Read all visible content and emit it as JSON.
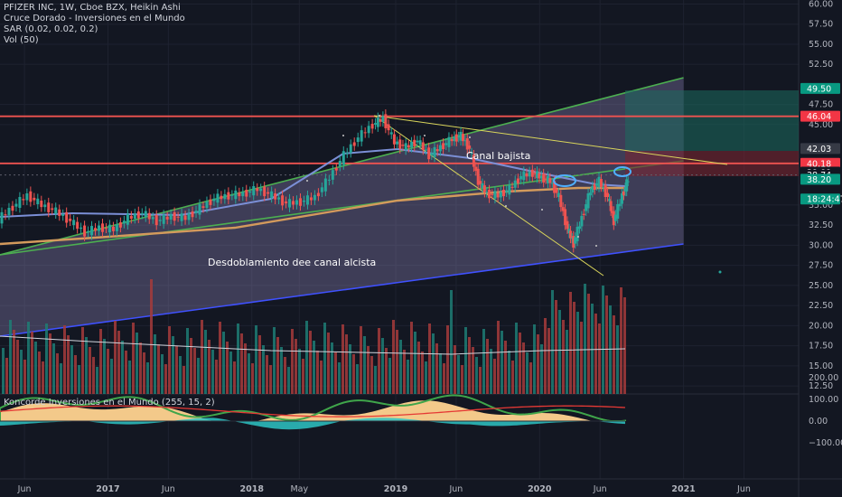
{
  "legend": {
    "line1": "PFIZER INC, 1W, Cboe BZX, Heikin Ashi",
    "line2": "Cruce Dorado - Inversiones en el Mundo",
    "line3": "SAR (0.02, 0.02, 0.2)",
    "line4": "Vol (50)"
  },
  "indicator": {
    "title": "Koncorde Inversiones en el Mundo (255, 15, 2)",
    "ticks": [
      "200.00",
      "100.00",
      "0.00",
      "−100.00"
    ]
  },
  "annotations": {
    "channel_down": "Canal bajista",
    "channel_up": "Desdoblamiento dee  canal alcista"
  },
  "colors": {
    "background": "#131722",
    "grid": "#1e2230",
    "channel_green": "#4caf50",
    "channel_blue": "#3f51ff",
    "resistance_red": "#ef5350",
    "trend_yellow": "#d9d55b",
    "candle_up": "#26a69a",
    "candle_down": "#ef5350"
  },
  "chart_data": {
    "type": "candlestick",
    "symbol": "PFIZER INC",
    "timeframe": "1W",
    "exchange": "Cboe BZX",
    "y_ticks": [
      "60.00",
      "57.50",
      "55.00",
      "52.50",
      "47.50",
      "45.00",
      "35.00",
      "32.50",
      "30.00",
      "27.50",
      "25.00",
      "22.50",
      "20.00",
      "17.50",
      "15.00",
      "12.50"
    ],
    "ylim": [
      11.5,
      60.5
    ],
    "x_ticks": [
      "Jun",
      "2017",
      "Jun",
      "2018",
      "May",
      "2019",
      "Jun",
      "2020",
      "Jun",
      "2021",
      "Jun"
    ],
    "x_tick_values": [
      2016.42,
      2017.0,
      2017.42,
      2018.0,
      2018.33,
      2019.0,
      2019.42,
      2020.0,
      2020.42,
      2021.0,
      2021.42
    ],
    "xlim": [
      2016.25,
      2021.8
    ],
    "price_labels": [
      {
        "value": 49.5,
        "text": "49.50",
        "color": "#089981"
      },
      {
        "value": 46.04,
        "text": "46.04",
        "color": "#f23645"
      },
      {
        "value": 42.03,
        "text": "42.03",
        "color": "#363a45"
      },
      {
        "value": 40.18,
        "text": "40.18",
        "color": "#f23645"
      },
      {
        "value": 39.09,
        "text": "39.09",
        "color": "#131722"
      },
      {
        "value": 38.74,
        "text": "38.74",
        "color": "#131722"
      },
      {
        "value": 38.2,
        "text": "38.20",
        "color": "#089981"
      },
      {
        "value": 35.75,
        "text": "18:24:47",
        "color": "#089981"
      }
    ],
    "closes": [
      {
        "x": 2016.25,
        "y": 33.2
      },
      {
        "x": 2016.35,
        "y": 34.8
      },
      {
        "x": 2016.45,
        "y": 36.2
      },
      {
        "x": 2016.55,
        "y": 35.0
      },
      {
        "x": 2016.65,
        "y": 34.2
      },
      {
        "x": 2016.75,
        "y": 33.0
      },
      {
        "x": 2016.85,
        "y": 31.6
      },
      {
        "x": 2016.95,
        "y": 32.2
      },
      {
        "x": 2017.05,
        "y": 32.0
      },
      {
        "x": 2017.15,
        "y": 33.4
      },
      {
        "x": 2017.25,
        "y": 34.0
      },
      {
        "x": 2017.35,
        "y": 33.0
      },
      {
        "x": 2017.45,
        "y": 33.6
      },
      {
        "x": 2017.55,
        "y": 33.4
      },
      {
        "x": 2017.65,
        "y": 34.6
      },
      {
        "x": 2017.75,
        "y": 35.8
      },
      {
        "x": 2017.85,
        "y": 36.2
      },
      {
        "x": 2017.95,
        "y": 36.4
      },
      {
        "x": 2018.05,
        "y": 37.0
      },
      {
        "x": 2018.15,
        "y": 36.2
      },
      {
        "x": 2018.25,
        "y": 35.2
      },
      {
        "x": 2018.35,
        "y": 35.4
      },
      {
        "x": 2018.45,
        "y": 36.0
      },
      {
        "x": 2018.55,
        "y": 38.4
      },
      {
        "x": 2018.65,
        "y": 41.2
      },
      {
        "x": 2018.75,
        "y": 43.4
      },
      {
        "x": 2018.85,
        "y": 45.0
      },
      {
        "x": 2018.92,
        "y": 45.8
      },
      {
        "x": 2019.0,
        "y": 42.8
      },
      {
        "x": 2019.08,
        "y": 42.2
      },
      {
        "x": 2019.16,
        "y": 43.0
      },
      {
        "x": 2019.24,
        "y": 41.2
      },
      {
        "x": 2019.32,
        "y": 42.2
      },
      {
        "x": 2019.4,
        "y": 43.2
      },
      {
        "x": 2019.46,
        "y": 43.6
      },
      {
        "x": 2019.52,
        "y": 42.0
      },
      {
        "x": 2019.58,
        "y": 38.0
      },
      {
        "x": 2019.64,
        "y": 36.4
      },
      {
        "x": 2019.72,
        "y": 36.2
      },
      {
        "x": 2019.8,
        "y": 37.0
      },
      {
        "x": 2019.88,
        "y": 38.6
      },
      {
        "x": 2019.96,
        "y": 39.0
      },
      {
        "x": 2020.02,
        "y": 38.4
      },
      {
        "x": 2020.08,
        "y": 38.0
      },
      {
        "x": 2020.14,
        "y": 36.0
      },
      {
        "x": 2020.2,
        "y": 32.0
      },
      {
        "x": 2020.24,
        "y": 30.2
      },
      {
        "x": 2020.3,
        "y": 33.4
      },
      {
        "x": 2020.36,
        "y": 36.8
      },
      {
        "x": 2020.42,
        "y": 38.0
      },
      {
        "x": 2020.48,
        "y": 36.0
      },
      {
        "x": 2020.52,
        "y": 33.0
      },
      {
        "x": 2020.58,
        "y": 36.2
      },
      {
        "x": 2020.62,
        "y": 38.2
      }
    ]
  }
}
